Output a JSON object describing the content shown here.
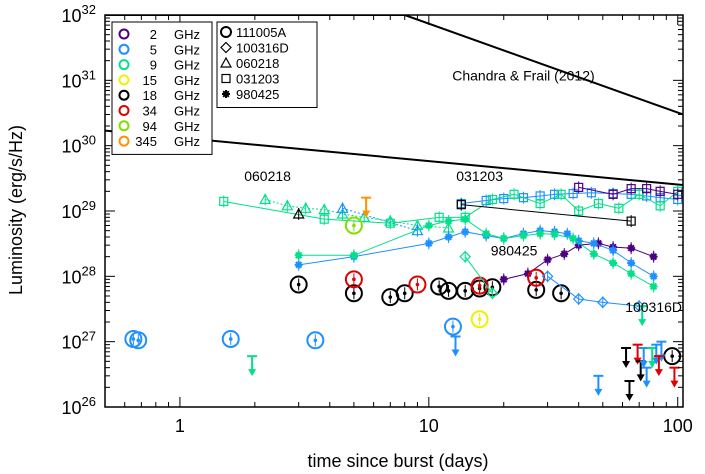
{
  "chart_data": {
    "type": "scatter",
    "xscale": "log",
    "yscale": "log",
    "xlim": [
      0.5,
      105
    ],
    "ylim": [
      1e+26,
      1e+32
    ],
    "xlabel": "time since burst (days)",
    "ylabel": "Luminosity (erg/s/Hz)",
    "xticks": [
      {
        "value": 1,
        "label": "1"
      },
      {
        "value": 10,
        "label": "10"
      },
      {
        "value": 100,
        "label": "100"
      }
    ],
    "yticks": [
      {
        "value": 1e+26,
        "base": "10",
        "exp": "26"
      },
      {
        "value": 1e+27,
        "base": "10",
        "exp": "27"
      },
      {
        "value": 1e+28,
        "base": "10",
        "exp": "28"
      },
      {
        "value": 1e+29,
        "base": "10",
        "exp": "29"
      },
      {
        "value": 1e+30,
        "base": "10",
        "exp": "30"
      },
      {
        "value": 1e+31,
        "base": "10",
        "exp": "31"
      },
      {
        "value": 1e+32,
        "base": "10",
        "exp": "32"
      }
    ],
    "frequency_legend": [
      {
        "freq": "2",
        "unit": "GHz",
        "color": "#4b0082"
      },
      {
        "freq": "5",
        "unit": "GHz",
        "color": "#1e90ff"
      },
      {
        "freq": "9",
        "unit": "GHz",
        "color": "#00e08a"
      },
      {
        "freq": "15",
        "unit": "GHz",
        "color": "#f0f000"
      },
      {
        "freq": "18",
        "unit": "GHz",
        "color": "#000000"
      },
      {
        "freq": "34",
        "unit": "GHz",
        "color": "#e00000"
      },
      {
        "freq": "94",
        "unit": "GHz",
        "color": "#7fe000"
      },
      {
        "freq": "345",
        "unit": "GHz",
        "color": "#ff9000"
      }
    ],
    "source_legend": [
      {
        "symbol": "O",
        "name": "111005A"
      },
      {
        "symbol": "◇",
        "name": "100316D"
      },
      {
        "symbol": "△",
        "name": "060218"
      },
      {
        "symbol": "□",
        "name": "031203"
      },
      {
        "symbol": "✱",
        "name": "980425"
      }
    ],
    "annotations": [
      {
        "text": "Chandra & Frail (2012)",
        "x": 24,
        "y": 1e+31
      },
      {
        "text": "060218",
        "x": 2.25,
        "y": 2.9e+29
      },
      {
        "text": "031203",
        "x": 16,
        "y": 2.9e+29
      },
      {
        "text": "980425",
        "x": 22,
        "y": 2.1e+28
      },
      {
        "text": "100316D",
        "x": 80,
        "y": 2.85e+27
      }
    ],
    "envelope": [
      {
        "name": "upper",
        "x": [
          0.5,
          8,
          105
        ],
        "y": [
          1e+32,
          1e+32,
          3e+30
        ]
      },
      {
        "name": "lower",
        "x": [
          0.5,
          105
        ],
        "y": [
          1.7e+30,
          2.5e+29
        ]
      }
    ],
    "series": [
      {
        "source": "031203",
        "freq": "5",
        "color": "#1e90ff",
        "marker": "square",
        "x": [
          13.5,
          17,
          20,
          24,
          28,
          32,
          38,
          45,
          55,
          65,
          75,
          85,
          100
        ],
        "y": [
          1.3e+29,
          1.45e+29,
          1.55e+29,
          1.6e+29,
          1.7e+29,
          1.8e+29,
          1.85e+29,
          1.9e+29,
          1.85e+29,
          1.8e+29,
          1.7e+29,
          1.6e+29,
          1.5e+29
        ]
      },
      {
        "source": "031203",
        "freq": "9",
        "color": "#00e08a",
        "marker": "square",
        "x": [
          1.5,
          3.8,
          7,
          11,
          14,
          18,
          22,
          28,
          34,
          40,
          48,
          58,
          70,
          85,
          100
        ],
        "y": [
          1.4e+29,
          7.5e+28,
          6.5e+28,
          8e+28,
          8e+28,
          1.5e+29,
          1.8e+29,
          1.3e+29,
          1.8e+29,
          1e+29,
          1.3e+29,
          1.1e+29,
          1.8e+29,
          1.2e+29,
          2e+29
        ]
      },
      {
        "source": "031203",
        "freq": "18",
        "color": "#000000",
        "marker": "square",
        "x": [
          13.5,
          65
        ],
        "y": [
          1.25e+29,
          7e+28
        ]
      },
      {
        "source": "031203",
        "freq": "2",
        "color": "#4b0082",
        "marker": "square",
        "x": [
          40,
          55,
          65,
          75,
          85,
          100
        ],
        "y": [
          2.3e+29,
          1.8e+29,
          2.2e+29,
          2.2e+29,
          2e+29,
          1.8e+29
        ]
      },
      {
        "source": "060218",
        "freq": "9",
        "color": "#00e08a",
        "marker": "triangle",
        "x": [
          2.2,
          2.7,
          3.2,
          3.8,
          4.5,
          5.5,
          7,
          9,
          12
        ],
        "y": [
          1.5e+29,
          1.2e+29,
          1.1e+29,
          1.05e+29,
          9e+28,
          8e+28,
          7e+28,
          6e+28,
          5.5e+28
        ]
      },
      {
        "source": "060218",
        "freq": "5",
        "color": "#1e90ff",
        "marker": "triangle",
        "x": [
          4.5,
          9
        ],
        "y": [
          1.1e+29,
          5e+28
        ]
      },
      {
        "source": "060218",
        "freq": "18",
        "color": "#000000",
        "marker": "triangle",
        "x": [
          3.0
        ],
        "y": [
          9e+28
        ]
      },
      {
        "source": "980425",
        "freq": "2",
        "color": "#4b0082",
        "marker": "star",
        "x": [
          20,
          25,
          30,
          35,
          40,
          48,
          55,
          65,
          80
        ],
        "y": [
          9e+27,
          1.1e+28,
          1.8e+28,
          2.2e+28,
          3e+28,
          3.2e+28,
          2.8e+28,
          2.7e+28,
          2e+28
        ]
      },
      {
        "source": "980425",
        "freq": "5",
        "color": "#1e90ff",
        "marker": "star",
        "x": [
          3,
          5,
          10,
          12,
          14,
          17,
          20,
          24,
          28,
          32,
          36,
          40,
          46,
          55,
          65,
          80
        ],
        "y": [
          1.5e+28,
          2e+28,
          3.2e+28,
          4e+28,
          4.8e+28,
          4.2e+28,
          3.8e+28,
          4.5e+28,
          5e+28,
          4.8e+28,
          4.5e+28,
          3.5e+28,
          3.2e+28,
          2.5e+28,
          1.6e+28,
          1e+28
        ]
      },
      {
        "source": "980425",
        "freq": "9",
        "color": "#00e08a",
        "marker": "star",
        "x": [
          3,
          5,
          10,
          12,
          14,
          17,
          20,
          24,
          28,
          32,
          38,
          46,
          55,
          65,
          80
        ],
        "y": [
          2.1e+28,
          2.1e+28,
          6e+28,
          7e+28,
          7.5e+28,
          4.5e+28,
          3.8e+28,
          4.2e+28,
          4.5e+28,
          4.4e+28,
          3.8e+28,
          2.2e+28,
          1.6e+28,
          1.1e+28,
          7e+27
        ]
      },
      {
        "source": "111005A",
        "freq": "5",
        "color": "#1e90ff",
        "marker": "circle",
        "x": [
          0.65,
          0.68,
          1.6,
          3.5,
          12.5
        ],
        "y": [
          1.1e+27,
          1.05e+27,
          1.1e+27,
          1.05e+27,
          1.7e+27
        ]
      },
      {
        "source": "111005A",
        "freq": "18",
        "color": "#000000",
        "marker": "circle",
        "x": [
          3.0,
          5.0,
          7.0,
          8.0,
          11,
          12,
          14,
          16,
          18,
          27,
          34,
          95
        ],
        "y": [
          7.5e+27,
          5.5e+27,
          4.8e+27,
          5.5e+27,
          7e+27,
          6e+27,
          6e+27,
          6.5e+27,
          6.8e+27,
          6.2e+27,
          5.5e+27,
          6e+26
        ]
      },
      {
        "source": "111005A",
        "freq": "34",
        "color": "#e00000",
        "marker": "circle",
        "x": [
          5.0,
          9.0,
          16,
          27
        ],
        "y": [
          9e+27,
          7.5e+27,
          7.2e+27,
          9.5e+27
        ]
      },
      {
        "source": "111005A",
        "freq": "15",
        "color": "#f0f000",
        "marker": "circle",
        "x": [
          16
        ],
        "y": [
          2.2e+27
        ]
      },
      {
        "source": "111005A",
        "freq": "94",
        "color": "#7fe000",
        "marker": "circle",
        "x": [
          5.0
        ],
        "y": [
          6e+28
        ]
      },
      {
        "source": "100316D",
        "freq": "5",
        "color": "#1e90ff",
        "marker": "diamond",
        "x": [
          30,
          40,
          50,
          70
        ],
        "y": [
          1e+28,
          4.5e+27,
          4e+27,
          3.5e+27
        ]
      },
      {
        "source": "100316D",
        "freq": "9",
        "color": "#00e08a",
        "marker": "diamond",
        "x": [
          14,
          18
        ],
        "y": [
          2e+28,
          5.5e+27
        ]
      }
    ],
    "upper_limits": [
      {
        "x": 1.95,
        "y": 6e+26,
        "color": "#00e08a"
      },
      {
        "x": 5.6,
        "y": 1.6e+29,
        "color": "#ff9000"
      },
      {
        "x": 12.8,
        "y": 1.2e+27,
        "color": "#1e90ff"
      },
      {
        "x": 48,
        "y": 3e+26,
        "color": "#1e90ff"
      },
      {
        "x": 62,
        "y": 8e+26,
        "color": "#000000"
      },
      {
        "x": 64,
        "y": 2.5e+26,
        "color": "#000000"
      },
      {
        "x": 69,
        "y": 9e+26,
        "color": "#e00000"
      },
      {
        "x": 71,
        "y": 5e+26,
        "color": "#000000"
      },
      {
        "x": 73,
        "y": 8e+26,
        "color": "#1e90ff"
      },
      {
        "x": 75,
        "y": 4e+26,
        "color": "#1e90ff"
      },
      {
        "x": 79,
        "y": 8e+26,
        "color": "#00e08a"
      },
      {
        "x": 82,
        "y": 9e+26,
        "color": "#1e90ff"
      },
      {
        "x": 86,
        "y": 1e+27,
        "color": "#1e90ff"
      },
      {
        "x": 97,
        "y": 4e+26,
        "color": "#e00000"
      },
      {
        "x": 72,
        "y": 3.5e+27,
        "color": "#00e08a"
      },
      {
        "x": 84,
        "y": 6e+26,
        "color": "#e00000"
      }
    ]
  }
}
